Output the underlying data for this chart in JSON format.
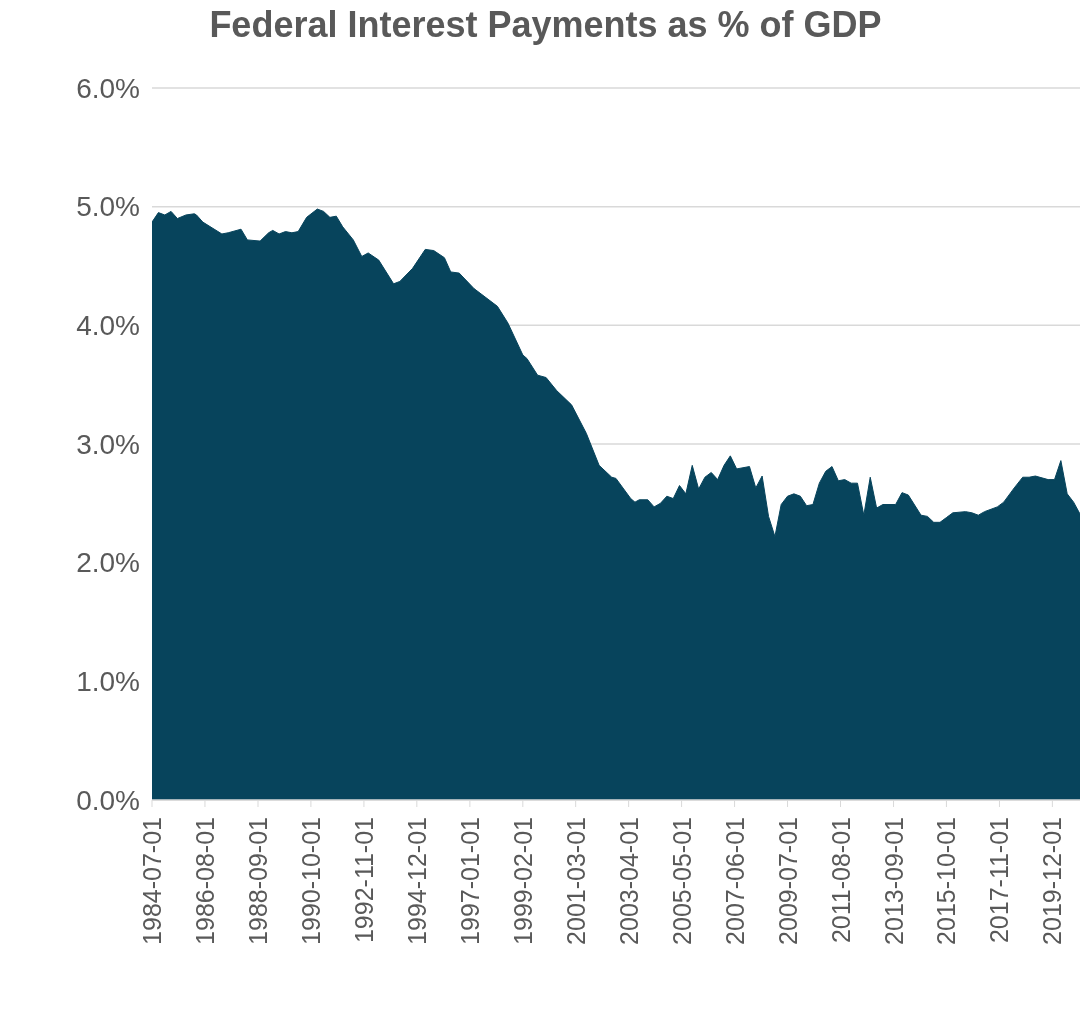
{
  "chart_data": {
    "type": "area",
    "title": "Federal Interest Payments as % of GDP",
    "x": [
      "1984-07",
      "1984-10",
      "1985-01",
      "1985-04",
      "1985-07",
      "1985-11",
      "1986-03",
      "1986-04",
      "1986-07",
      "1987-04",
      "1987-07",
      "1988-01",
      "1988-04",
      "1988-10",
      "1989-02",
      "1989-04",
      "1989-07",
      "1989-10",
      "1990-01",
      "1990-04",
      "1990-08",
      "1991-01",
      "1991-04",
      "1991-07",
      "1991-10",
      "1992-01",
      "1992-06",
      "1992-10",
      "1993-01",
      "1993-06",
      "1994-01",
      "1994-04",
      "1994-10",
      "1995-04",
      "1995-08",
      "1996-01",
      "1996-04",
      "1996-08",
      "1997-03",
      "1998-02",
      "1998-07",
      "1999-02",
      "1999-04",
      "1999-09",
      "2000-01",
      "2000-06",
      "2001-01",
      "2001-08",
      "2002-02",
      "2002-08",
      "2002-10",
      "2003-05",
      "2003-07",
      "2003-09",
      "2004-01",
      "2004-04",
      "2004-07",
      "2004-10",
      "2005-01",
      "2005-04",
      "2005-07",
      "2005-10",
      "2006-01",
      "2006-04",
      "2006-07",
      "2006-10",
      "2007-01",
      "2007-04",
      "2007-07",
      "2008-01",
      "2008-04",
      "2008-07",
      "2008-10",
      "2009-01",
      "2009-04",
      "2009-07",
      "2009-10",
      "2010-01",
      "2010-04",
      "2010-07",
      "2010-10",
      "2011-01",
      "2011-04",
      "2011-07",
      "2011-10",
      "2012-01",
      "2012-04",
      "2012-07",
      "2012-10",
      "2013-01",
      "2013-04",
      "2013-10",
      "2014-01",
      "2014-04",
      "2014-10",
      "2015-01",
      "2015-04",
      "2015-07",
      "2015-10",
      "2016-01",
      "2016-07",
      "2016-10",
      "2017-01",
      "2017-04",
      "2017-10",
      "2018-01",
      "2018-06",
      "2018-10",
      "2019-01",
      "2019-04",
      "2019-10",
      "2020-01",
      "2020-04",
      "2020-07",
      "2020-10",
      "2021-01"
    ],
    "series": [
      {
        "color": "#07445c",
        "values": [
          4.87,
          4.95,
          4.93,
          4.96,
          4.9,
          4.93,
          4.94,
          4.93,
          4.87,
          4.77,
          4.78,
          4.81,
          4.72,
          4.71,
          4.78,
          4.8,
          4.77,
          4.79,
          4.78,
          4.79,
          4.91,
          4.98,
          4.96,
          4.91,
          4.92,
          4.83,
          4.72,
          4.58,
          4.61,
          4.55,
          4.35,
          4.37,
          4.48,
          4.64,
          4.63,
          4.57,
          4.45,
          4.44,
          4.31,
          4.16,
          4.02,
          3.75,
          3.72,
          3.58,
          3.56,
          3.45,
          3.33,
          3.09,
          2.82,
          2.72,
          2.71,
          2.54,
          2.51,
          2.53,
          2.53,
          2.47,
          2.5,
          2.56,
          2.54,
          2.65,
          2.58,
          2.82,
          2.62,
          2.72,
          2.76,
          2.7,
          2.82,
          2.9,
          2.79,
          2.81,
          2.63,
          2.73,
          2.39,
          2.22,
          2.49,
          2.56,
          2.58,
          2.56,
          2.48,
          2.49,
          2.67,
          2.77,
          2.81,
          2.69,
          2.7,
          2.67,
          2.67,
          2.4,
          2.72,
          2.46,
          2.49,
          2.49,
          2.59,
          2.57,
          2.4,
          2.39,
          2.34,
          2.34,
          2.38,
          2.42,
          2.43,
          2.42,
          2.4,
          2.43,
          2.47,
          2.51,
          2.63,
          2.72,
          2.72,
          2.73,
          2.7,
          2.7,
          2.86,
          2.58,
          2.51,
          2.41
        ]
      }
    ],
    "xlim": [
      "1984-07-01",
      "2021-01-01"
    ],
    "xticks": [
      "1984-07-01",
      "1986-08-01",
      "1988-09-01",
      "1990-10-01",
      "1992-11-01",
      "1994-12-01",
      "1997-01-01",
      "1999-02-01",
      "2001-03-01",
      "2003-04-01",
      "2005-05-01",
      "2007-06-01",
      "2009-07-01",
      "2011-08-01",
      "2013-09-01",
      "2015-10-01",
      "2017-11-01",
      "2019-12-01"
    ],
    "ylim": [
      0,
      6
    ],
    "yticks": [
      {
        "value": 0,
        "label": "0.0%"
      },
      {
        "value": 1,
        "label": "1.0%"
      },
      {
        "value": 2,
        "label": "2.0%"
      },
      {
        "value": 3,
        "label": "3.0%"
      },
      {
        "value": 4,
        "label": "4.0%"
      },
      {
        "value": 5,
        "label": "5.0%"
      },
      {
        "value": 6,
        "label": "6.0%"
      }
    ],
    "grid": "y"
  }
}
